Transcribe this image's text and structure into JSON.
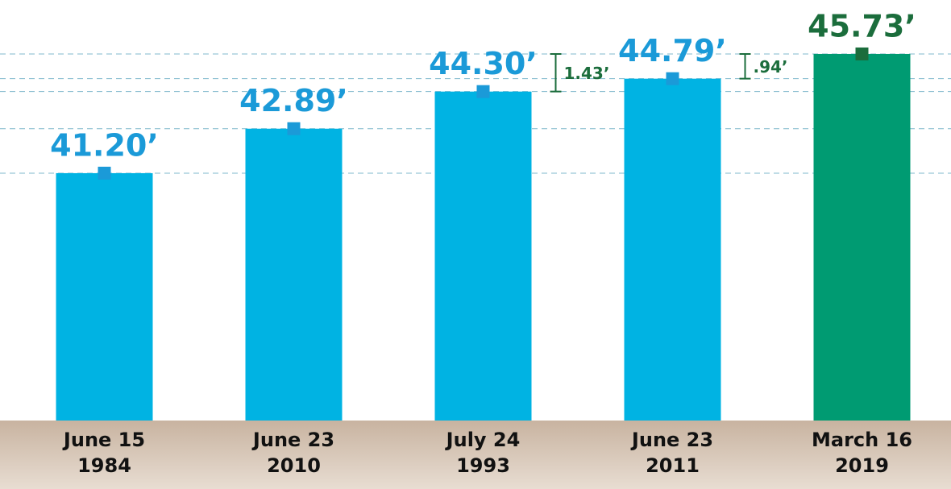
{
  "chart_data": {
    "type": "bar",
    "categories": [
      "June 15\n1984",
      "June 23\n2010",
      "July 24\n1993",
      "June 23\n2011",
      "March 16\n2019"
    ],
    "values": [
      41.2,
      42.89,
      44.3,
      44.79,
      45.73
    ],
    "value_labels": [
      "41.20’",
      "42.89’",
      "44.30’",
      "44.79’",
      "45.73’"
    ],
    "colors": [
      "#00b3e3",
      "#00b3e3",
      "#00b3e3",
      "#00b3e3",
      "#009b72"
    ],
    "label_colors": [
      "#1b9ad8",
      "#1b9ad8",
      "#1b9ad8",
      "#1b9ad8",
      "#1b6d3c"
    ],
    "gaps": [
      null,
      null,
      1.43,
      0.94,
      null
    ],
    "gap_labels": [
      null,
      null,
      "1.43’",
      ".94’",
      null
    ],
    "ylim": [
      31.8,
      47.78
    ],
    "grid": true
  }
}
